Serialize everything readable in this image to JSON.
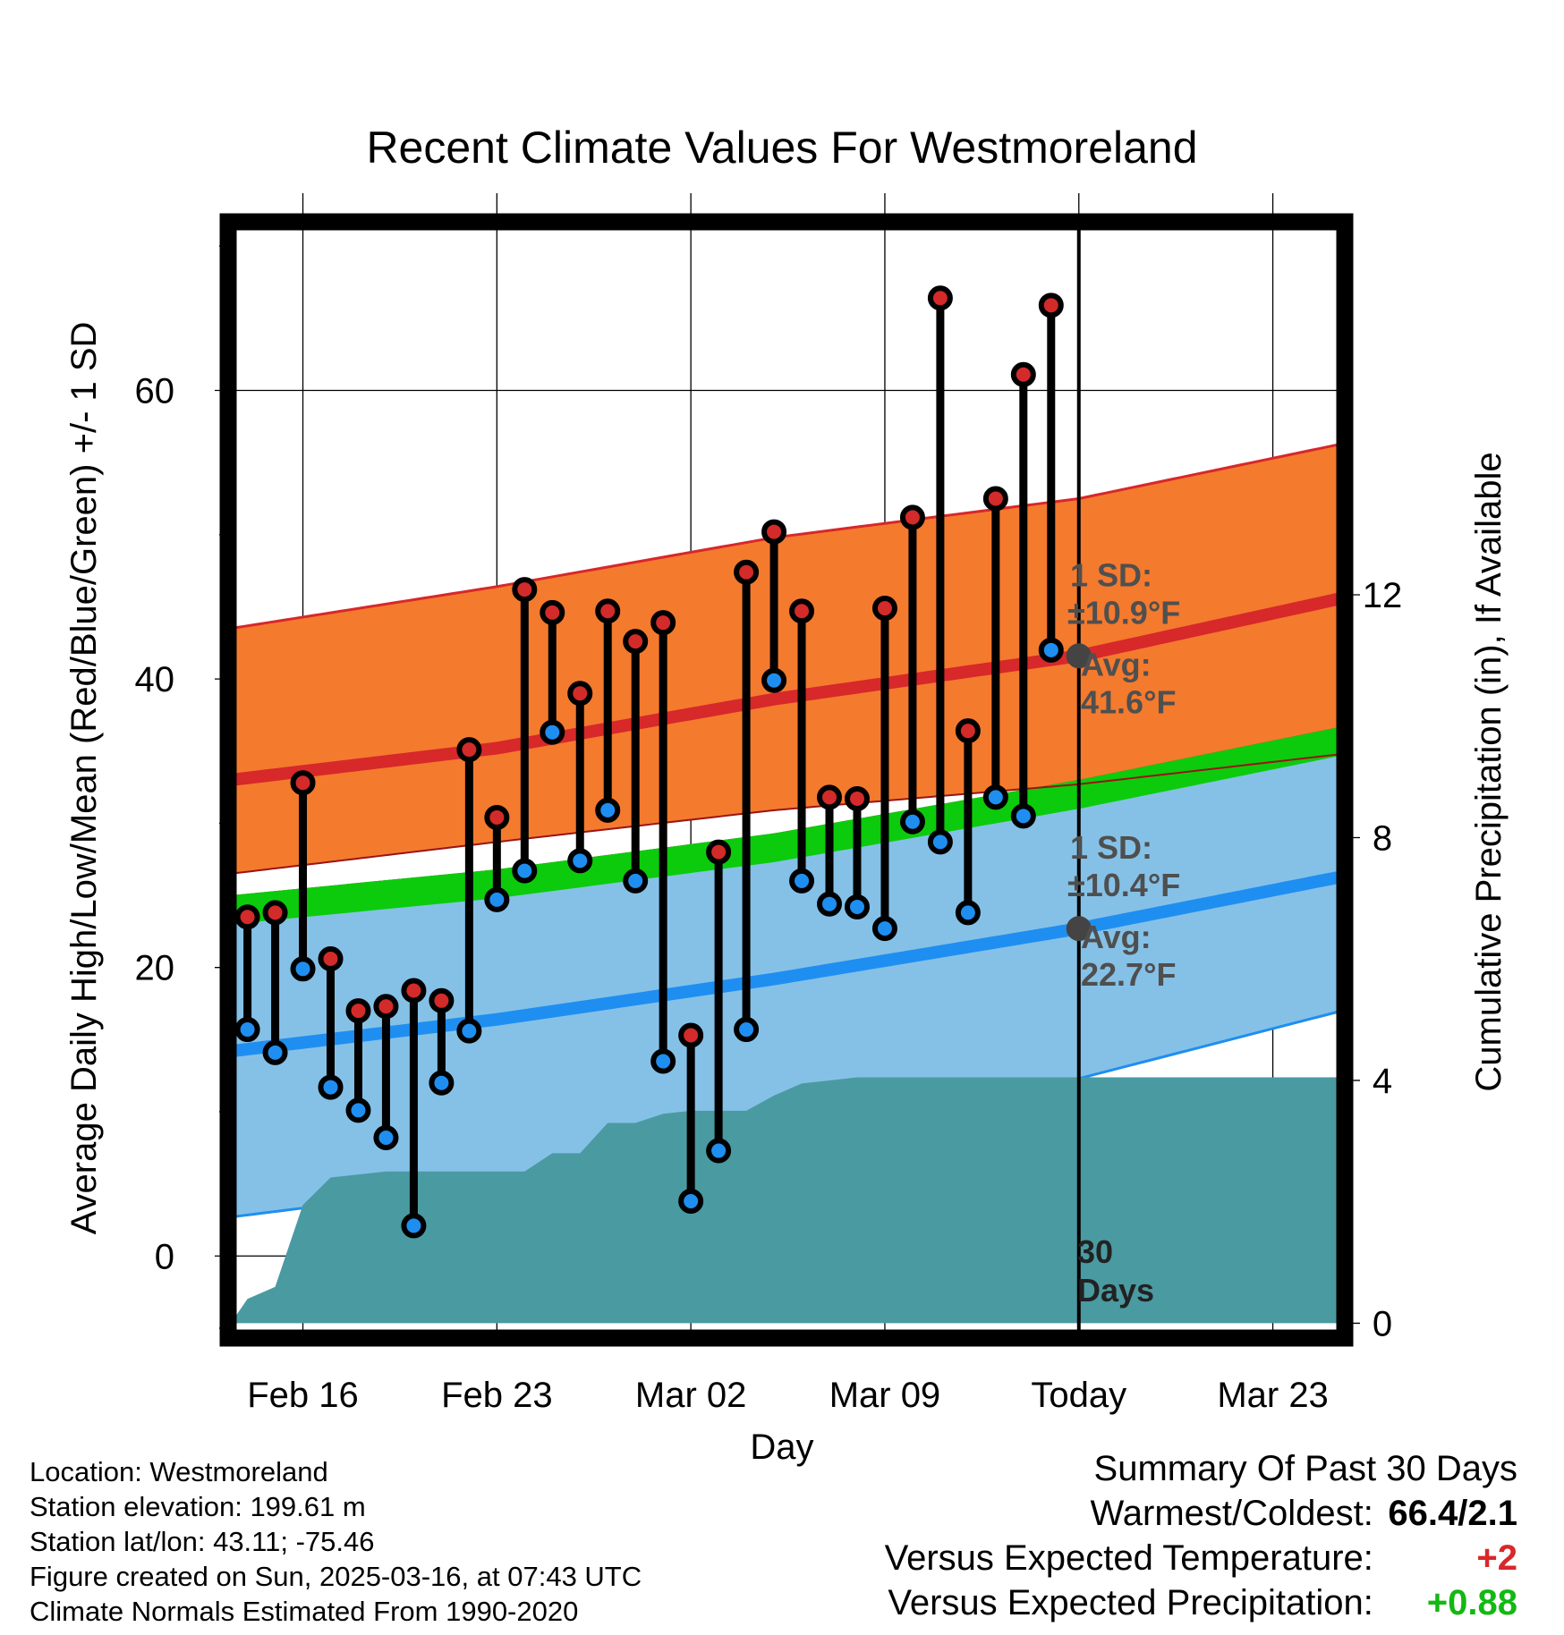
{
  "chart_data": {
    "type": "line",
    "title": "Recent Climate Values For Westmoreland",
    "xlabel": "Day",
    "ylabel_left": "Average Daily High/Low/Mean (Red/Blue/Green) +/- 1 SD",
    "ylabel_right": "Cumulative Precipitation (in), If Available",
    "x_ticks": [
      {
        "label": "Feb 16",
        "day": 3
      },
      {
        "label": "Feb 23",
        "day": 10
      },
      {
        "label": "Mar 02",
        "day": 17
      },
      {
        "label": "Mar 09",
        "day": 24
      },
      {
        "label": "Today",
        "day": 31
      },
      {
        "label": "Mar 23",
        "day": 38
      }
    ],
    "x_range_days": [
      0.4,
      40.5
    ],
    "ylim_left": [
      -5.5,
      71.5
    ],
    "y_ticks_left": [
      0,
      20,
      40,
      60
    ],
    "ylim_right": [
      -0.2,
      18.1
    ],
    "y_ticks_right": [
      0,
      4,
      8,
      12
    ],
    "grid": true,
    "observed": [
      {
        "day": 1,
        "high": 23.5,
        "low": 15.7
      },
      {
        "day": 2,
        "high": 23.8,
        "low": 14.1
      },
      {
        "day": 3,
        "high": 32.8,
        "low": 19.9
      },
      {
        "day": 4,
        "high": 20.6,
        "low": 11.7
      },
      {
        "day": 5,
        "high": 17.0,
        "low": 10.1
      },
      {
        "day": 6,
        "high": 17.3,
        "low": 8.2
      },
      {
        "day": 7,
        "high": 18.4,
        "low": 2.1
      },
      {
        "day": 8,
        "high": 17.7,
        "low": 12.0
      },
      {
        "day": 9,
        "high": 35.1,
        "low": 15.6
      },
      {
        "day": 10,
        "high": 30.4,
        "low": 24.7
      },
      {
        "day": 11,
        "high": 46.2,
        "low": 26.7
      },
      {
        "day": 12,
        "high": 44.6,
        "low": 36.3
      },
      {
        "day": 13,
        "high": 39.0,
        "low": 27.4
      },
      {
        "day": 14,
        "high": 44.7,
        "low": 30.9
      },
      {
        "day": 15,
        "high": 42.6,
        "low": 26.0
      },
      {
        "day": 16,
        "high": 43.9,
        "low": 13.5
      },
      {
        "day": 17,
        "high": 15.3,
        "low": 3.8
      },
      {
        "day": 18,
        "high": 28.0,
        "low": 7.3
      },
      {
        "day": 19,
        "high": 47.4,
        "low": 15.7
      },
      {
        "day": 20,
        "high": 50.2,
        "low": 39.9
      },
      {
        "day": 21,
        "high": 44.7,
        "low": 26.0
      },
      {
        "day": 22,
        "high": 31.8,
        "low": 24.4
      },
      {
        "day": 23,
        "high": 31.7,
        "low": 24.2
      },
      {
        "day": 24,
        "high": 44.9,
        "low": 22.7
      },
      {
        "day": 25,
        "high": 51.2,
        "low": 30.1
      },
      {
        "day": 26,
        "high": 66.4,
        "low": 28.7
      },
      {
        "day": 27,
        "high": 36.4,
        "low": 23.8
      },
      {
        "day": 28,
        "high": 52.5,
        "low": 31.8
      },
      {
        "day": 29,
        "high": 61.1,
        "low": 30.5
      },
      {
        "day": 30,
        "high": 65.9,
        "low": 42.0
      }
    ],
    "normals": {
      "days": [
        0.4,
        10,
        20,
        31,
        40.5
      ],
      "high_avg": [
        33.0,
        35.2,
        38.6,
        41.6,
        45.6
      ],
      "high_upper": [
        43.5,
        46.4,
        49.8,
        52.5,
        56.3
      ],
      "high_lower": [
        26.5,
        28.7,
        30.9,
        32.7,
        34.8
      ],
      "mean_avg": [
        24.0,
        25.8,
        28.3,
        32.0,
        35.7
      ],
      "low_avg": [
        14.2,
        16.4,
        19.2,
        22.7,
        26.3
      ],
      "low_upper": [
        23.0,
        25.3,
        28.4,
        32.3,
        35.5
      ],
      "low_lower": [
        2.7,
        5.0,
        8.0,
        12.3,
        17.0
      ]
    },
    "precip_cumulative": {
      "days": [
        0.4,
        1,
        2,
        3,
        4,
        5,
        6,
        7,
        8,
        9,
        10,
        11,
        12,
        13,
        14,
        15,
        16,
        17,
        18,
        19,
        20,
        21,
        22,
        23,
        24,
        25,
        26,
        27,
        28,
        29,
        30,
        31,
        40.5
      ],
      "values": [
        0.0,
        0.4,
        0.6,
        1.95,
        2.4,
        2.45,
        2.5,
        2.5,
        2.5,
        2.5,
        2.5,
        2.5,
        2.8,
        2.8,
        3.3,
        3.3,
        3.45,
        3.5,
        3.5,
        3.5,
        3.75,
        3.95,
        4.0,
        4.05,
        4.05,
        4.05,
        4.05,
        4.05,
        4.05,
        4.05,
        4.05,
        4.05,
        4.05
      ]
    },
    "annotations": {
      "high_sd_label": "1 SD:",
      "high_sd_value": "±10.9°F",
      "high_avg_label": "Avg:",
      "high_avg_value": "41.6°F",
      "low_sd_label": "1 SD:",
      "low_sd_value": "±10.4°F",
      "low_avg_label": "Avg:",
      "low_avg_value": "22.7°F",
      "today_day": 31,
      "high_avg_today": 41.6,
      "low_avg_today": 22.7,
      "period_label_1": "30",
      "period_label_2": "Days"
    },
    "colors": {
      "high_band": "#f47a2e",
      "high_line": "#d7282a",
      "low_band": "#85c1e7",
      "low_line": "#1f8ef1",
      "mean_band_green": "#0ccb0c",
      "overlap_dark_red": "#9a1414",
      "precip_fill": "#4a9aa2",
      "annotation_gray": "#4f4f4f",
      "high_dot": "#d32a2a",
      "low_dot": "#1f8ef1"
    }
  },
  "footer": {
    "location": "Location: Westmoreland",
    "elevation": "Station elevation: 199.61 m",
    "latlon": "Station lat/lon: 43.11; -75.46",
    "created": "Figure created on Sun, 2025-03-16, at 07:43 UTC",
    "normals": "Climate Normals Estimated From 1990-2020"
  },
  "summary": {
    "title": "Summary Of Past 30 Days",
    "warmest_coldest_label": "Warmest/Coldest:",
    "warmest_coldest_value": "66.4/2.1",
    "temp_label": "Versus Expected Temperature:",
    "temp_value": "+2",
    "temp_color": "#d7282a",
    "precip_label": "Versus Expected Precipitation:",
    "precip_value": "+0.88",
    "precip_color": "#13b813"
  }
}
